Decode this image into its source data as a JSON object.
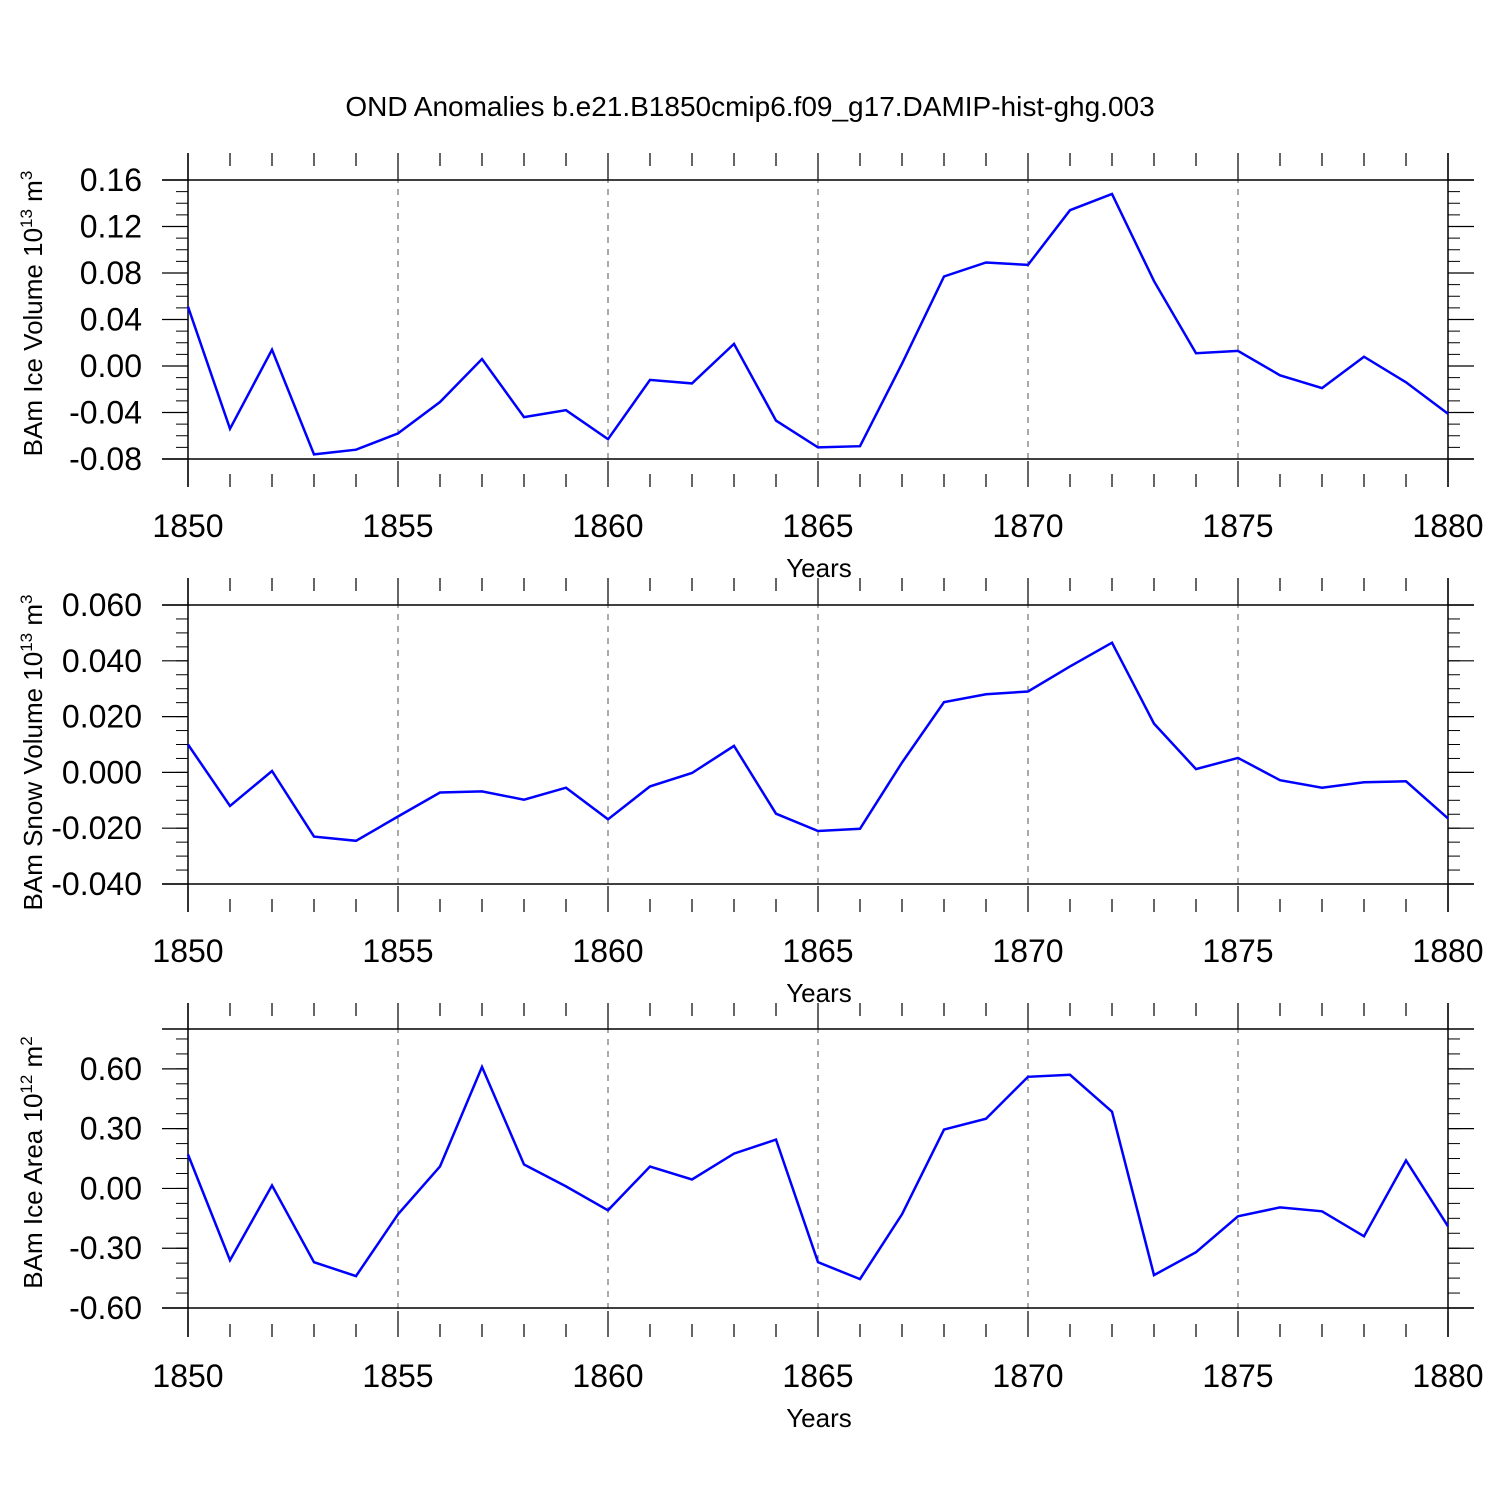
{
  "title": "OND Anomalies b.e21.B1850cmip6.f09_g17.DAMIP-hist-ghg.003",
  "colors": {
    "line": "#0000ff",
    "axis": "#000000",
    "grid": "#555555"
  },
  "chart_data": [
    {
      "type": "line",
      "ylabel": {
        "main": "BAm Ice Volume 10",
        "sup": "13",
        "unit": " m",
        "unit_sup": "3"
      },
      "xlabel": "Years",
      "xlim": [
        1850,
        1880
      ],
      "ylim": [
        -0.08,
        0.16
      ],
      "xticks": [
        1850,
        1855,
        1860,
        1865,
        1870,
        1875,
        1880
      ],
      "yticks": [
        -0.08,
        -0.04,
        0.0,
        0.04,
        0.08,
        0.12,
        0.16
      ],
      "ytick_labels": [
        "-0.08",
        "-0.04",
        "0.00",
        "0.04",
        "0.08",
        "0.12",
        "0.16"
      ],
      "grid": "vertical dashed at major x ticks",
      "series": [
        {
          "x": [
            1850,
            1851,
            1852,
            1853,
            1854,
            1855,
            1856,
            1857,
            1858,
            1859,
            1860,
            1861,
            1862,
            1863,
            1864,
            1865,
            1866,
            1867,
            1868,
            1869,
            1870,
            1871,
            1872,
            1873,
            1874,
            1875,
            1876,
            1877,
            1878,
            1879,
            1880
          ],
          "values": [
            0.051,
            -0.054,
            0.014,
            -0.076,
            -0.072,
            -0.058,
            -0.031,
            0.006,
            -0.044,
            -0.038,
            -0.063,
            -0.012,
            -0.015,
            0.019,
            -0.047,
            -0.07,
            -0.069,
            0.002,
            0.077,
            0.089,
            0.087,
            0.134,
            0.148,
            0.073,
            0.011,
            0.013,
            -0.008,
            -0.019,
            0.008,
            -0.014,
            -0.041
          ]
        }
      ]
    },
    {
      "type": "line",
      "ylabel": {
        "main": "BAm Snow Volume 10",
        "sup": "13",
        "unit": " m",
        "unit_sup": "3"
      },
      "xlabel": "Years",
      "xlim": [
        1850,
        1880
      ],
      "ylim": [
        -0.04,
        0.06
      ],
      "xticks": [
        1850,
        1855,
        1860,
        1865,
        1870,
        1875,
        1880
      ],
      "yticks": [
        -0.04,
        -0.02,
        0.0,
        0.02,
        0.04,
        0.06
      ],
      "ytick_labels": [
        "-0.040",
        "-0.020",
        "0.000",
        "0.020",
        "0.040",
        "0.060"
      ],
      "grid": "vertical dashed at major x ticks",
      "series": [
        {
          "x": [
            1850,
            1851,
            1852,
            1853,
            1854,
            1855,
            1856,
            1857,
            1858,
            1859,
            1860,
            1861,
            1862,
            1863,
            1864,
            1865,
            1866,
            1867,
            1868,
            1869,
            1870,
            1871,
            1872,
            1873,
            1874,
            1875,
            1876,
            1877,
            1878,
            1879,
            1880
          ],
          "values": [
            0.01,
            -0.012,
            0.0005,
            -0.023,
            -0.0245,
            -0.0158,
            -0.0072,
            -0.0068,
            -0.0098,
            -0.0055,
            -0.0168,
            -0.005,
            -0.0002,
            0.0095,
            -0.0148,
            -0.021,
            -0.0202,
            0.0035,
            0.0252,
            0.028,
            0.029,
            0.038,
            0.0465,
            0.0175,
            0.0012,
            0.0052,
            -0.0028,
            -0.0055,
            -0.0035,
            -0.0032,
            -0.0165
          ]
        }
      ]
    },
    {
      "type": "line",
      "ylabel": {
        "main": "BAm Ice Area 10",
        "sup": "12",
        "unit": " m",
        "unit_sup": "2"
      },
      "xlabel": "Years",
      "xlim": [
        1850,
        1880
      ],
      "ylim": [
        -0.6,
        0.8
      ],
      "xticks": [
        1850,
        1855,
        1860,
        1865,
        1870,
        1875,
        1880
      ],
      "yticks": [
        -0.6,
        -0.3,
        0.0,
        0.3,
        0.6
      ],
      "ytick_labels": [
        "-0.60",
        "-0.30",
        "0.00",
        "0.30",
        "0.60"
      ],
      "grid": "vertical dashed at major x ticks",
      "series": [
        {
          "x": [
            1850,
            1851,
            1852,
            1853,
            1854,
            1855,
            1856,
            1857,
            1858,
            1859,
            1860,
            1861,
            1862,
            1863,
            1864,
            1865,
            1866,
            1867,
            1868,
            1869,
            1870,
            1871,
            1872,
            1873,
            1874,
            1875,
            1876,
            1877,
            1878,
            1879,
            1880
          ],
          "values": [
            0.17,
            -0.36,
            0.015,
            -0.37,
            -0.44,
            -0.13,
            0.11,
            0.61,
            0.12,
            0.01,
            -0.11,
            0.11,
            0.045,
            0.175,
            0.245,
            -0.37,
            -0.455,
            -0.13,
            0.295,
            0.35,
            0.56,
            0.57,
            0.385,
            -0.435,
            -0.32,
            -0.14,
            -0.095,
            -0.115,
            -0.24,
            0.14,
            -0.19
          ]
        }
      ]
    }
  ]
}
